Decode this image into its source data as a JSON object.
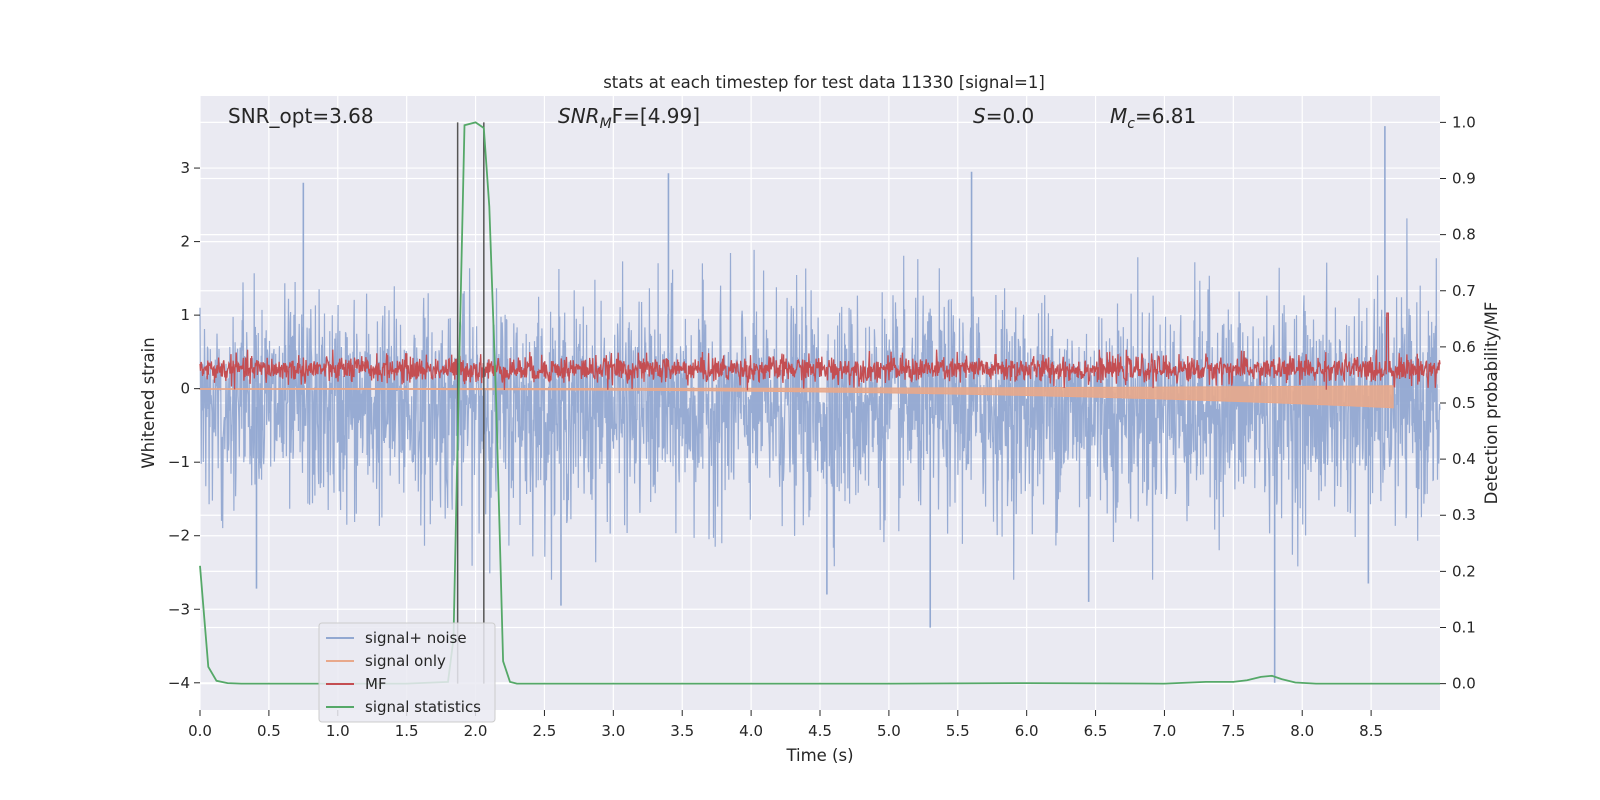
{
  "chart_data": {
    "type": "line",
    "title": "stats at each timestep for test data 11330 [signal=1]",
    "xlabel": "Time (s)",
    "ylabel_left": "Whitened strain",
    "ylabel_right": "Detection probability/MF",
    "xlim": [
      0.0,
      9.0
    ],
    "ylim_left": [
      -4.37,
      3.98
    ],
    "ylim_right": [
      -0.047,
      1.047
    ],
    "x_ticks": [
      0.0,
      0.5,
      1.0,
      1.5,
      2.0,
      2.5,
      3.0,
      3.5,
      4.0,
      4.5,
      5.0,
      5.5,
      6.0,
      6.5,
      7.0,
      7.5,
      8.0,
      8.5
    ],
    "x_tick_labels": [
      "0.0",
      "0.5",
      "1.0",
      "1.5",
      "2.0",
      "2.5",
      "3.0",
      "3.5",
      "4.0",
      "4.5",
      "5.0",
      "5.5",
      "6.0",
      "6.5",
      "7.0",
      "7.5",
      "8.0",
      "8.5"
    ],
    "y_left_ticks": [
      3,
      2,
      1,
      0,
      -1,
      -2,
      -3,
      -4
    ],
    "y_left_tick_labels": [
      "3",
      "2",
      "1",
      "0",
      "−1",
      "−2",
      "−3",
      "−4"
    ],
    "y_right_ticks": [
      1.0,
      0.9,
      0.8,
      0.7,
      0.6,
      0.5,
      0.4,
      0.3,
      0.2,
      0.1,
      0.0
    ],
    "y_right_tick_labels": [
      "1.0",
      "0.9",
      "0.8",
      "0.7",
      "0.6",
      "0.5",
      "0.4",
      "0.3",
      "0.2",
      "0.1",
      "0.0"
    ],
    "grid": true,
    "legend_position": "lower-left",
    "annotations": {
      "snr_opt": "SNR_opt=3.68",
      "snr_mf_base": "SNR",
      "snr_mf_sub": "M",
      "snr_mf_rest": "F=[4.99]",
      "s_label": "S",
      "s_value": "=0.0",
      "mc_base": "M",
      "mc_sub": "c",
      "mc_value": "=6.81"
    },
    "vlines": [
      1.87,
      2.06
    ],
    "vline_range_right": [
      0.0,
      1.0
    ],
    "series": [
      {
        "name": "signal+ noise",
        "color": "#92a8d1",
        "axis": "left",
        "kind": "noise",
        "center": -0.25,
        "envelope_hi": 2.0,
        "envelope_lo": -2.0,
        "peak_max": 3.57,
        "peak_min": -4.0,
        "spikes": [
          [
            8.6,
            3.57
          ],
          [
            7.8,
            -4.0
          ],
          [
            5.3,
            -3.25
          ],
          [
            2.62,
            -2.95
          ],
          [
            4.55,
            -2.8
          ],
          [
            0.41,
            -2.72
          ],
          [
            6.45,
            -2.9
          ],
          [
            8.48,
            -2.65
          ],
          [
            0.75,
            2.8
          ],
          [
            3.4,
            2.93
          ],
          [
            5.6,
            2.95
          ]
        ]
      },
      {
        "name": "signal only",
        "color": "#e8a88b",
        "axis": "left",
        "kind": "chirp",
        "start": 0.0,
        "end": 8.66,
        "amp_start": 0.01,
        "amp_end": 0.26
      },
      {
        "name": "MF",
        "color": "#c44e52",
        "axis": "right",
        "kind": "noise",
        "baseline": 0.5,
        "mean": 0.56,
        "band_hi": 0.585,
        "peak": 0.66,
        "peak_at": 8.62
      },
      {
        "name": "signal statistics",
        "color": "#55a868",
        "axis": "right",
        "kind": "line",
        "x": [
          0.0,
          0.06,
          0.12,
          0.2,
          0.3,
          0.5,
          1.0,
          1.5,
          1.8,
          1.84,
          1.88,
          1.92,
          2.0,
          2.06,
          2.1,
          2.15,
          2.2,
          2.25,
          2.3,
          3.0,
          5.0,
          6.0,
          7.0,
          7.3,
          7.5,
          7.6,
          7.7,
          7.78,
          7.85,
          7.95,
          8.1,
          9.0
        ],
        "y": [
          0.21,
          0.03,
          0.005,
          0.001,
          0.0,
          0.0,
          0.0,
          0.0,
          0.003,
          0.08,
          0.55,
          0.995,
          1.0,
          0.99,
          0.85,
          0.5,
          0.04,
          0.003,
          0.0,
          0.0,
          0.0,
          0.001,
          0.0,
          0.003,
          0.003,
          0.006,
          0.012,
          0.014,
          0.008,
          0.002,
          0.0,
          0.0
        ]
      }
    ]
  }
}
